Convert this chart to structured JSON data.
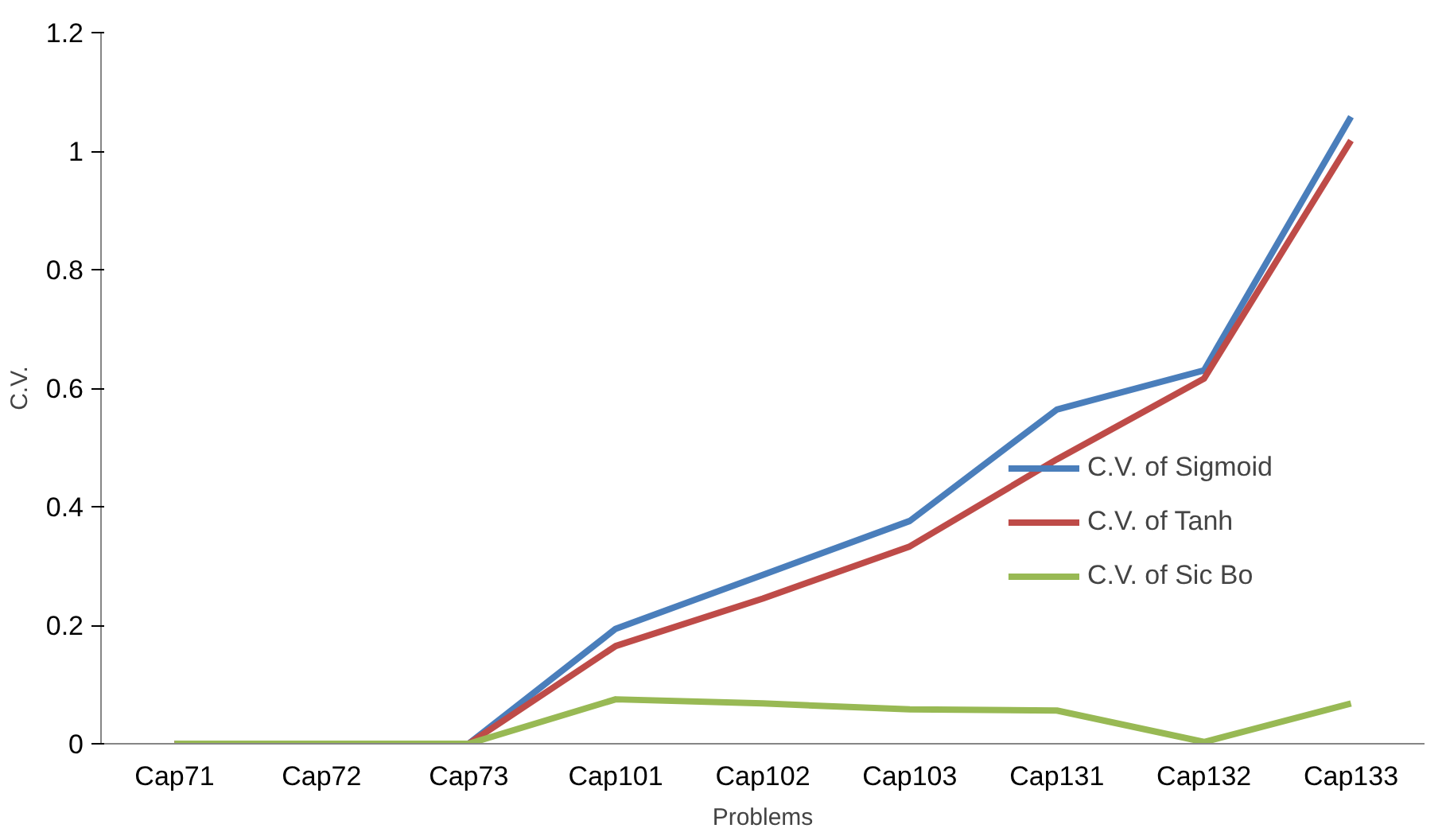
{
  "chart_data": {
    "type": "line",
    "xlabel": "Problems",
    "ylabel": "C.V.",
    "categories": [
      "Cap71",
      "Cap72",
      "Cap73",
      "Cap101",
      "Cap102",
      "Cap103",
      "Cap131",
      "Cap132",
      "Cap133"
    ],
    "series": [
      {
        "name": "C.V. of Sigmoid",
        "color": "#4a7ebb",
        "values": [
          0,
          0,
          0,
          0.194,
          0.285,
          0.376,
          0.564,
          0.63,
          1.058
        ]
      },
      {
        "name": "C.V. of Tanh",
        "color": "#be4b48",
        "values": [
          0,
          0,
          0,
          0.165,
          0.245,
          0.333,
          0.48,
          0.616,
          1.018
        ]
      },
      {
        "name": "C.V. of Sic Bo",
        "color": "#98b954",
        "values": [
          0,
          0,
          0,
          0.075,
          0.068,
          0.058,
          0.056,
          0.003,
          0.068
        ]
      }
    ],
    "ylim": [
      0,
      1.2
    ],
    "yticks": [
      0,
      0.2,
      0.4,
      0.6,
      0.8,
      1,
      1.2
    ],
    "grid": false,
    "legend": "right",
    "marker": "none",
    "line_style": "solid"
  }
}
